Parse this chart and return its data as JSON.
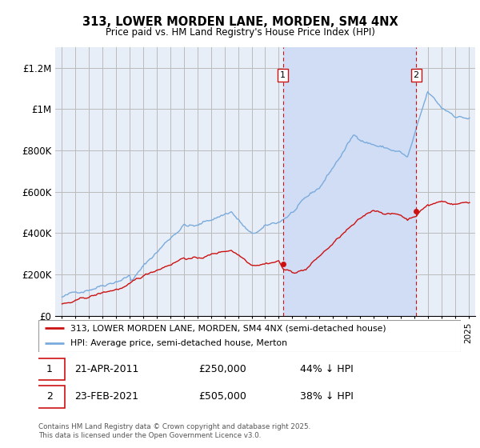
{
  "title": "313, LOWER MORDEN LANE, MORDEN, SM4 4NX",
  "subtitle": "Price paid vs. HM Land Registry's House Price Index (HPI)",
  "ylabel_ticks": [
    "£0",
    "£200K",
    "£400K",
    "£600K",
    "£800K",
    "£1M",
    "£1.2M"
  ],
  "ytick_values": [
    0,
    200000,
    400000,
    600000,
    800000,
    1000000,
    1200000
  ],
  "ylim": [
    0,
    1300000
  ],
  "xlim_start": 1994.5,
  "xlim_end": 2025.5,
  "background_color": "#e8eef8",
  "plot_background": "#e8eef8",
  "shade_color": "#d0ddf5",
  "grid_color": "#bbbbbb",
  "hpi_color": "#7aabdc",
  "price_color": "#cc1111",
  "sale1_date_num": 2011.31,
  "sale2_date_num": 2021.14,
  "sale1_price": 250000,
  "sale2_price": 505000,
  "sale1_label": "1",
  "sale2_label": "2",
  "legend_line1": "313, LOWER MORDEN LANE, MORDEN, SM4 4NX (semi-detached house)",
  "legend_line2": "HPI: Average price, semi-detached house, Merton",
  "annotation1_date": "21-APR-2011",
  "annotation1_price": "£250,000",
  "annotation1_hpi": "44% ↓ HPI",
  "annotation2_date": "23-FEB-2021",
  "annotation2_price": "£505,000",
  "annotation2_hpi": "38% ↓ HPI",
  "footer": "Contains HM Land Registry data © Crown copyright and database right 2025.\nThis data is licensed under the Open Government Licence v3.0."
}
